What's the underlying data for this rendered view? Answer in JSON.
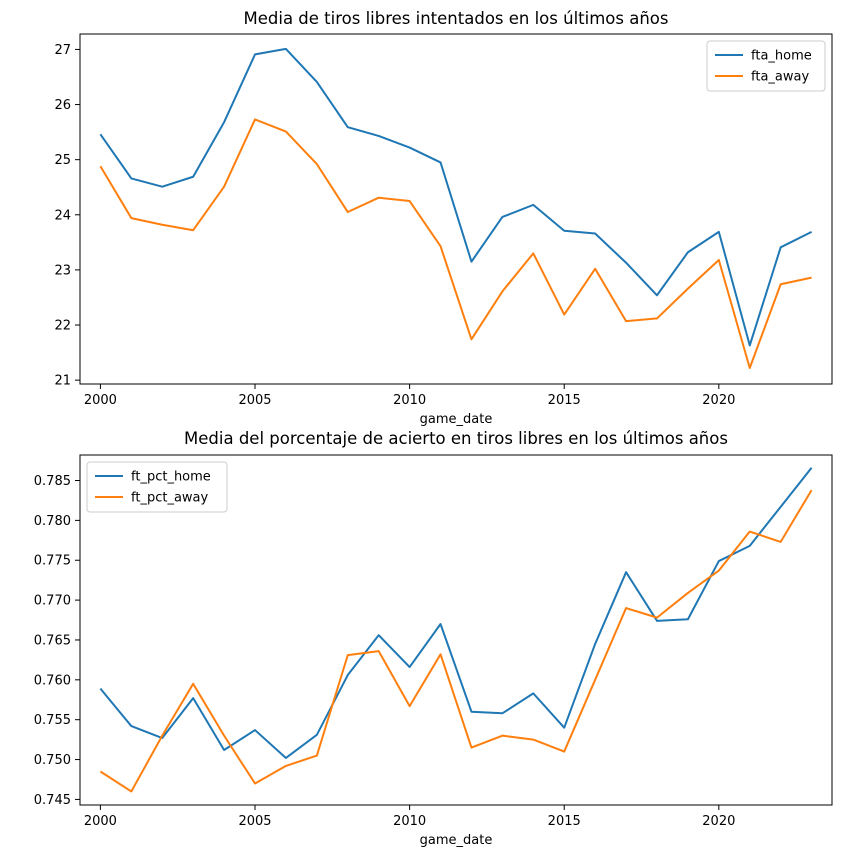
{
  "chart_data": [
    {
      "type": "line",
      "title": "Media de tiros libres intentados en los últimos años",
      "xlabel": "game_date",
      "ylabel": "",
      "x": [
        2000,
        2001,
        2002,
        2003,
        2004,
        2005,
        2006,
        2007,
        2008,
        2009,
        2010,
        2011,
        2012,
        2013,
        2014,
        2015,
        2016,
        2017,
        2018,
        2019,
        2020,
        2021,
        2022,
        2023
      ],
      "xlim": [
        1999.34,
        2023.66
      ],
      "ylim": [
        20.93,
        27.28
      ],
      "xticks": [
        2000,
        2005,
        2010,
        2015,
        2020
      ],
      "xtick_labels": [
        "2000",
        "2005",
        "2010",
        "2015",
        "2020"
      ],
      "yticks": [
        21,
        22,
        23,
        24,
        25,
        26,
        27
      ],
      "ytick_labels": [
        "21",
        "22",
        "23",
        "24",
        "25",
        "26",
        "27"
      ],
      "grid": false,
      "legend_position": "top-right",
      "series": [
        {
          "name": "fta_home",
          "color": "#1f77b4",
          "values": [
            25.46,
            24.66,
            24.51,
            24.69,
            25.68,
            26.91,
            27.01,
            26.41,
            25.59,
            25.43,
            25.22,
            24.95,
            23.15,
            23.96,
            24.18,
            23.71,
            23.66,
            23.13,
            22.54,
            23.32,
            23.69,
            21.63,
            23.41,
            23.69
          ]
        },
        {
          "name": "fta_away",
          "color": "#ff7f0e",
          "values": [
            24.88,
            23.94,
            23.82,
            23.72,
            24.51,
            25.73,
            25.51,
            24.92,
            24.05,
            24.31,
            24.25,
            23.43,
            21.74,
            22.61,
            23.3,
            22.19,
            23.02,
            22.07,
            22.12,
            22.66,
            23.18,
            21.22,
            22.74,
            22.86
          ]
        }
      ]
    },
    {
      "type": "line",
      "title": "Media del porcentaje de acierto en tiros libres en los últimos años",
      "xlabel": "game_date",
      "ylabel": "",
      "x": [
        2000,
        2001,
        2002,
        2003,
        2004,
        2005,
        2006,
        2007,
        2008,
        2009,
        2010,
        2011,
        2012,
        2013,
        2014,
        2015,
        2016,
        2017,
        2018,
        2019,
        2020,
        2021,
        2022,
        2023
      ],
      "xlim": [
        1999.34,
        2023.66
      ],
      "ylim": [
        0.7443,
        0.7882
      ],
      "xticks": [
        2000,
        2005,
        2010,
        2015,
        2020
      ],
      "xtick_labels": [
        "2000",
        "2005",
        "2010",
        "2015",
        "2020"
      ],
      "yticks": [
        0.745,
        0.75,
        0.755,
        0.76,
        0.765,
        0.77,
        0.775,
        0.78,
        0.785
      ],
      "ytick_labels": [
        "0.745",
        "0.750",
        "0.755",
        "0.760",
        "0.765",
        "0.770",
        "0.775",
        "0.780",
        "0.785"
      ],
      "grid": false,
      "legend_position": "top-left",
      "series": [
        {
          "name": "ft_pct_home",
          "color": "#1f77b4",
          "values": [
            0.7589,
            0.7542,
            0.7527,
            0.7577,
            0.7512,
            0.7537,
            0.7502,
            0.7531,
            0.7606,
            0.7656,
            0.7616,
            0.767,
            0.756,
            0.7558,
            0.7583,
            0.754,
            0.7645,
            0.7735,
            0.7674,
            0.7676,
            0.7749,
            0.7768,
            0.7817,
            0.7866
          ]
        },
        {
          "name": "ft_pct_away",
          "color": "#ff7f0e",
          "values": [
            0.7485,
            0.746,
            0.753,
            0.7595,
            0.753,
            0.747,
            0.7492,
            0.7505,
            0.7631,
            0.7636,
            0.7567,
            0.7632,
            0.7515,
            0.753,
            0.7525,
            0.751,
            0.76,
            0.769,
            0.7678,
            0.7709,
            0.7737,
            0.7786,
            0.7773,
            0.7838
          ]
        }
      ]
    }
  ]
}
